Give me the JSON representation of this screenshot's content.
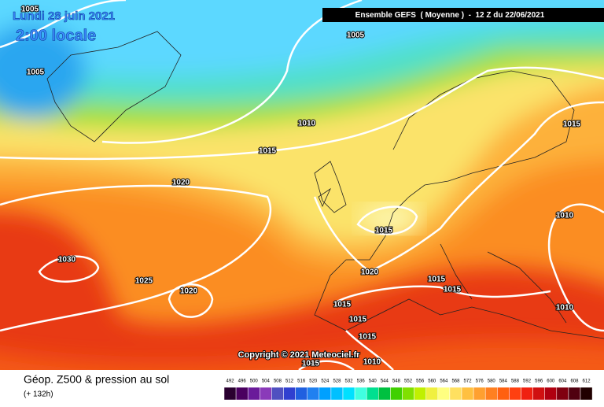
{
  "header": {
    "date": "Lundi 28 juin 2021",
    "time": "2:00 locale",
    "run": "Ensemble GEFS  ( Moyenne )  -  12 Z du 22/06/2021"
  },
  "map": {
    "isobar_labels": [
      "1005",
      "1005",
      "1005",
      "1010",
      "1015",
      "1020",
      "1015",
      "1030",
      "1025",
      "1020",
      "1020",
      "1015",
      "1015",
      "1015",
      "1015",
      "1015",
      "1015",
      "1010",
      "1010",
      "1010",
      "1015"
    ],
    "copyright": "Copyright © 2021 Meteociel.fr"
  },
  "legend": {
    "title": "Géop. Z500 & pression au sol",
    "lead": "(+ 132h)",
    "scale": [
      "492",
      "496",
      "500",
      "504",
      "508",
      "512",
      "516",
      "520",
      "524",
      "528",
      "532",
      "536",
      "540",
      "544",
      "548",
      "552",
      "556",
      "560",
      "564",
      "568",
      "572",
      "576",
      "580",
      "584",
      "588",
      "592",
      "596",
      "600",
      "604",
      "608",
      "612"
    ]
  }
}
